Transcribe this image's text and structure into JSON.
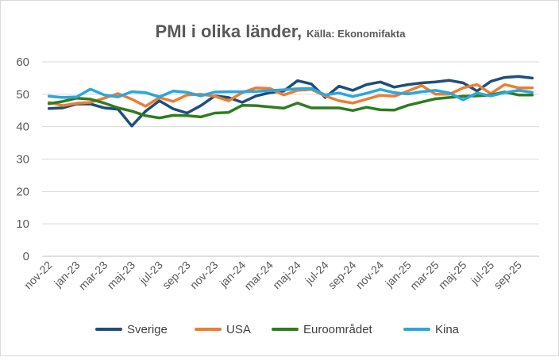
{
  "chart_data": {
    "type": "line",
    "title": "PMI i olika länder,",
    "subtitle": "Källa: Ekonomifakta",
    "xlabel": "",
    "ylabel": "",
    "ylim": [
      0,
      60
    ],
    "yticks": [
      "0",
      "10",
      "20",
      "30",
      "40",
      "50",
      "60"
    ],
    "grid": true,
    "legend_position": "bottom",
    "categories": [
      "nov-22",
      "dec-22",
      "jan-23",
      "feb-23",
      "mar-23",
      "apr-23",
      "maj-23",
      "jun-23",
      "jul-23",
      "aug-23",
      "sep-23",
      "okt-23",
      "nov-23",
      "dec-23",
      "jan-24",
      "feb-24",
      "mar-24",
      "apr-24",
      "maj-24",
      "jun-24",
      "jul-24",
      "aug-24",
      "sep-24",
      "okt-24",
      "nov-24",
      "dec-24",
      "jan-25",
      "feb-25",
      "mar-25",
      "apr-25",
      "maj-25",
      "jun-25",
      "jul-25",
      "aug-25",
      "sep-25",
      "okt-25"
    ],
    "x_tick_labels": [
      "nov-22",
      "jan-23",
      "mar-23",
      "maj-23",
      "jul-23",
      "sep-23",
      "nov-23",
      "jan-24",
      "mar-24",
      "maj-24",
      "jul-24",
      "sep-24",
      "nov-24",
      "jan-25",
      "mar-25",
      "maj-25",
      "jul-25",
      "sep-25"
    ],
    "series": [
      {
        "name": "Sverige",
        "color": "#1f4e79",
        "values": [
          45.6,
          45.8,
          47.0,
          47.0,
          45.8,
          45.4,
          40.2,
          44.8,
          48.0,
          45.5,
          44.2,
          46.5,
          49.5,
          49.0,
          47.5,
          49.5,
          50.5,
          51.0,
          54.2,
          53.2,
          49.0,
          52.5,
          51.2,
          53.0,
          53.8,
          52.2,
          53.0,
          53.5,
          53.8,
          54.3,
          53.5,
          51.0,
          54.0,
          55.2,
          55.5,
          55.0
        ]
      },
      {
        "name": "USA",
        "color": "#ed7d31",
        "values": [
          47.5,
          46.5,
          47.2,
          47.5,
          48.8,
          50.2,
          48.5,
          46.3,
          49.0,
          47.8,
          49.8,
          50.0,
          49.4,
          48.0,
          50.5,
          52.0,
          51.8,
          49.8,
          51.2,
          51.5,
          49.5,
          48.0,
          47.3,
          48.5,
          49.7,
          49.4,
          51.0,
          52.7,
          50.0,
          50.0,
          52.0,
          53.0,
          50.2,
          53.0,
          52.0,
          52.0
        ]
      },
      {
        "name": "Euroområdet",
        "color": "#2e7d1e",
        "values": [
          47.1,
          47.8,
          48.8,
          48.5,
          47.3,
          45.8,
          44.8,
          43.4,
          42.7,
          43.5,
          43.4,
          43.0,
          44.2,
          44.4,
          46.6,
          46.5,
          46.1,
          45.7,
          47.3,
          45.8,
          45.8,
          45.8,
          45.0,
          46.0,
          45.2,
          45.1,
          46.6,
          47.6,
          48.6,
          49.0,
          49.4,
          49.5,
          49.8,
          50.7,
          49.8,
          49.8
        ]
      },
      {
        "name": "Kina",
        "color": "#2aa7dc",
        "values": [
          49.4,
          49.0,
          49.2,
          51.6,
          49.8,
          49.2,
          50.8,
          50.5,
          49.2,
          51.0,
          50.6,
          49.5,
          50.7,
          50.8,
          50.8,
          50.9,
          51.1,
          51.4,
          51.7,
          51.8,
          49.8,
          50.4,
          49.3,
          50.3,
          51.5,
          50.5,
          50.1,
          50.8,
          51.2,
          50.4,
          48.3,
          50.4,
          49.5,
          50.5,
          51.2,
          50.6
        ]
      }
    ]
  }
}
